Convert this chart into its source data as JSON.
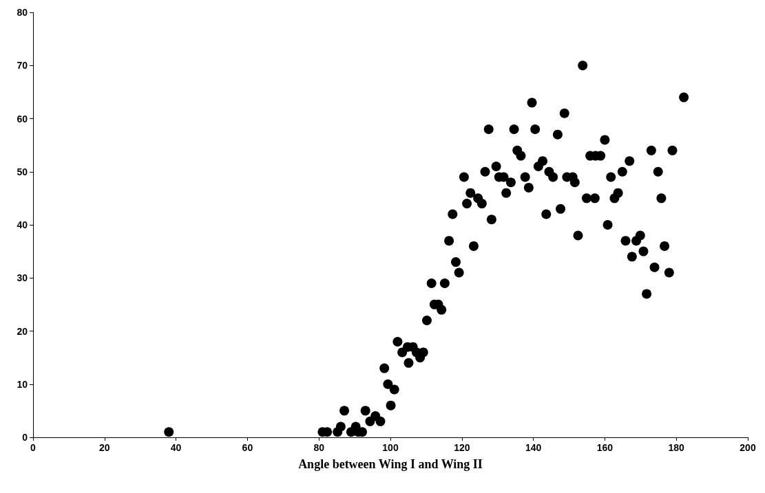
{
  "chart_data": {
    "type": "scatter",
    "xlabel": "Angle between Wing I and Wing II",
    "x": [
      38,
      81,
      82.3,
      85.2,
      86.1,
      87.1,
      89,
      90.3,
      91,
      92.1,
      93,
      94.3,
      95.8,
      97.2,
      98.3,
      99.3,
      100.1,
      101.1,
      102,
      103.3,
      104.8,
      105.1,
      106.3,
      107.3,
      108.3,
      109.2,
      110.2,
      111.5,
      112.3,
      113.4,
      114.3,
      115.2,
      116.4,
      117.4,
      118.3,
      119.2,
      120.6,
      121.4,
      122.4,
      123.3,
      124.5,
      125.6,
      126.5,
      127.5,
      128.3,
      129.6,
      130.4,
      131.7,
      132.4,
      133.7,
      134.6,
      135.5,
      136.5,
      137.7,
      138.7,
      139.6,
      140.5,
      141.4,
      142.6,
      143.6,
      144.4,
      145.5,
      146.8,
      147.6,
      148.7,
      149.4,
      151,
      151.6,
      152.5,
      153.8,
      154.9,
      155.9,
      157.2,
      157.4,
      158.8,
      160,
      160.8,
      161.7,
      162.7,
      163.7,
      164.9,
      165.8,
      166.9,
      167.6,
      168.8,
      169.9,
      170.8,
      171.7,
      173,
      173.9,
      174.9,
      175.8,
      176.7,
      178,
      178.9,
      182.1
    ],
    "values": [
      1,
      1,
      1,
      1,
      2,
      5,
      1,
      2,
      1,
      1,
      5,
      3,
      4,
      3,
      13,
      10,
      6,
      9,
      18,
      16,
      17,
      14,
      17,
      16,
      15,
      16,
      22,
      29,
      25,
      25,
      24,
      29,
      37,
      42,
      33,
      31,
      49,
      44,
      46,
      36,
      45,
      44,
      50,
      58,
      41,
      51,
      49,
      49,
      46,
      48,
      58,
      54,
      53,
      49,
      47,
      63,
      58,
      51,
      52,
      42,
      50,
      49,
      57,
      43,
      61,
      49,
      49,
      48,
      38,
      70,
      45,
      53,
      45,
      53,
      53,
      56,
      40,
      49,
      45,
      46,
      50,
      37,
      52,
      34,
      37,
      38,
      35,
      27,
      54,
      32,
      50,
      45,
      36,
      31,
      54,
      64
    ],
    "color": "#000000",
    "marker": "circle",
    "xlim": [
      0,
      200
    ],
    "xticks": [
      0,
      20,
      40,
      60,
      80,
      100,
      120,
      140,
      160,
      180,
      200
    ],
    "ylim": [
      0,
      80
    ],
    "yticks": [
      0,
      10,
      20,
      30,
      40,
      50,
      60,
      70,
      80
    ],
    "grid": false
  }
}
